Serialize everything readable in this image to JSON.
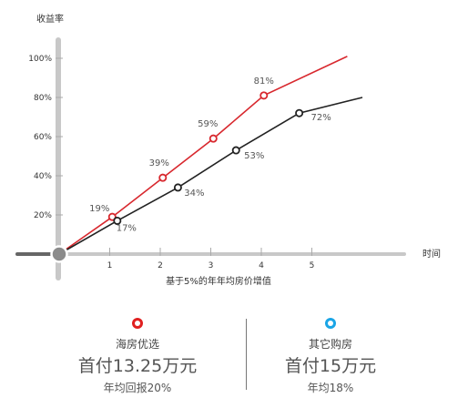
{
  "chart_data": {
    "type": "line",
    "ylabel": "收益率",
    "xlabel": "时间",
    "caption": "基于5%的年年均房价增值",
    "x_ticks": [
      "1",
      "2",
      "3",
      "4",
      "5"
    ],
    "y_ticks": [
      "20%",
      "40%",
      "60%",
      "80%",
      "100%"
    ],
    "ylim": [
      0,
      100
    ],
    "xlim": [
      0,
      5.5
    ],
    "series": [
      {
        "color": "#d8282e",
        "points": [
          {
            "x": 1.05,
            "y": 19,
            "label": "19%"
          },
          {
            "x": 2.05,
            "y": 39,
            "label": "39%"
          },
          {
            "x": 3.05,
            "y": 59,
            "label": "59%"
          },
          {
            "x": 4.05,
            "y": 81,
            "label": "81%"
          }
        ],
        "line_end": {
          "x": 5.7,
          "y": 101
        }
      },
      {
        "color": "#222222",
        "points": [
          {
            "x": 1.15,
            "y": 17,
            "label": "17%"
          },
          {
            "x": 2.35,
            "y": 34,
            "label": "34%"
          },
          {
            "x": 3.5,
            "y": 53,
            "label": "53%"
          },
          {
            "x": 4.75,
            "y": 72,
            "label": "72%"
          }
        ],
        "line_end": {
          "x": 6.0,
          "y": 80
        }
      }
    ]
  },
  "cards": [
    {
      "name": "海房优选",
      "price": "首付13.25万元",
      "rate": "年均回报20%",
      "color": "#e02020"
    },
    {
      "name": "其它购房",
      "price": "首付15万元",
      "rate": "年均18%",
      "color": "#1aa5e6"
    }
  ]
}
